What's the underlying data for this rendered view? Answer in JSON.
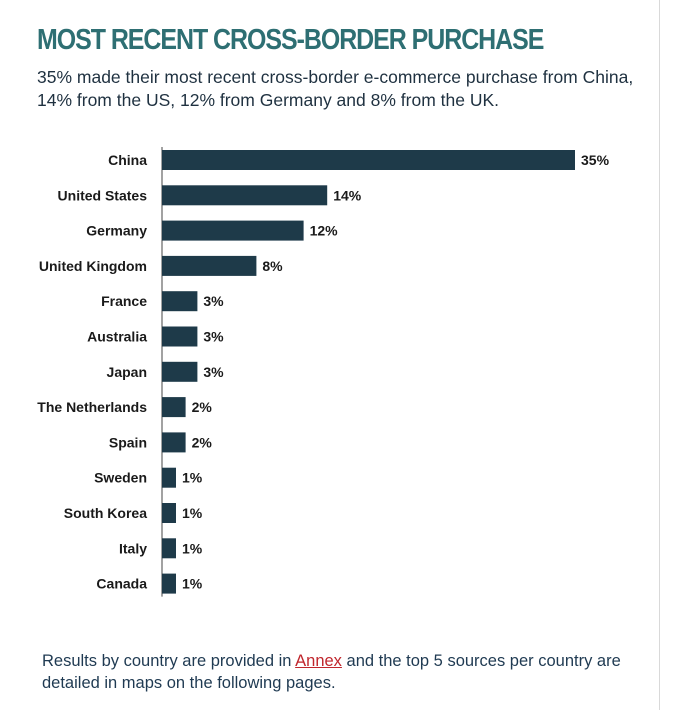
{
  "title": "MOST RECENT CROSS-BORDER PURCHASE",
  "subtitle": "35% made their most recent cross-border e-commerce purchase from China, 14% from the US, 12% from Germany and 8% from the UK.",
  "footer": {
    "text_before": "Results by country are provided in ",
    "link_text": "Annex",
    "text_after": " and the top 5 sources per country are detailed in maps on the following pages."
  },
  "colors": {
    "title": "#2e6f73",
    "bar": "#1e3a49",
    "link": "#c0262d",
    "footer_text": "#1f3a52"
  },
  "chart_data": {
    "type": "bar",
    "orientation": "horizontal",
    "categories": [
      "China",
      "United States",
      "Germany",
      "United Kingdom",
      "France",
      "Australia",
      "Japan",
      "The Netherlands",
      "Spain",
      "Sweden",
      "South Korea",
      "Italy",
      "Canada"
    ],
    "values": [
      35,
      14,
      12,
      8,
      3,
      3,
      3,
      2,
      2,
      1,
      1,
      1,
      1
    ],
    "value_labels": [
      "35%",
      "14%",
      "12%",
      "8%",
      "3%",
      "3%",
      "3%",
      "2%",
      "2%",
      "1%",
      "1%",
      "1%",
      "1%"
    ],
    "unit": "%",
    "xlabel": "",
    "ylabel": "",
    "grid": false,
    "legend": "none"
  }
}
